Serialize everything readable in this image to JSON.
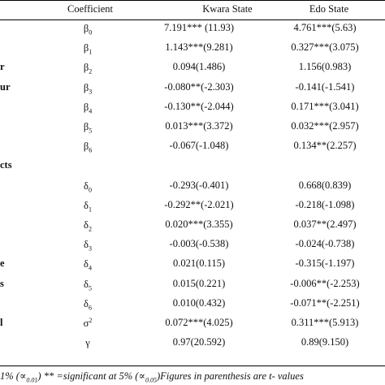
{
  "header": {
    "coefficient": "Coefficient",
    "kwara": "Kwara State",
    "edo": "Edo State"
  },
  "rows": [
    {
      "label": "",
      "sym_base": "β",
      "sym_sub": "0",
      "sym_sup": "",
      "kwara": "7.191*** (11.93)",
      "edo": "4.761***(5.63)"
    },
    {
      "label": "",
      "sym_base": "β",
      "sym_sub": "1",
      "sym_sup": "",
      "kwara": "1.143***(9.281)",
      "edo": "0.327***(3.075)"
    },
    {
      "label": "r",
      "sym_base": "β",
      "sym_sub": "2",
      "sym_sup": "",
      "kwara": "0.094(1.486)",
      "edo": "1.156(0.983)"
    },
    {
      "label": "ur",
      "sym_base": "β",
      "sym_sub": "3",
      "sym_sup": "",
      "kwara": "-0.080**(-2.303)",
      "edo": "-0.141(-1.541)"
    },
    {
      "label": "",
      "sym_base": "β",
      "sym_sub": "4",
      "sym_sup": "",
      "kwara": "-0.130**(-2.044)",
      "edo": "0.171***(3.041)"
    },
    {
      "label": "",
      "sym_base": "β",
      "sym_sub": "5",
      "sym_sup": "",
      "kwara": "0.013***(3.372)",
      "edo": "0.032***(2.957)"
    },
    {
      "label": "",
      "sym_base": "β",
      "sym_sub": "6",
      "sym_sup": "",
      "kwara": "-0.067(-1.048)",
      "edo": "0.134**(2.257)"
    },
    {
      "label": "cts",
      "sym_base": "",
      "sym_sub": "",
      "sym_sup": "",
      "kwara": "",
      "edo": ""
    },
    {
      "label": "",
      "sym_base": "δ",
      "sym_sub": "0",
      "sym_sup": "",
      "kwara": "-0.293(-0.401)",
      "edo": "0.668(0.839)"
    },
    {
      "label": "",
      "sym_base": "δ",
      "sym_sub": "1",
      "sym_sup": "",
      "kwara": "-0.292**(-2.021)",
      "edo": "-0.218(-1.098)"
    },
    {
      "label": "",
      "sym_base": "δ",
      "sym_sub": "2",
      "sym_sup": "",
      "kwara": "0.020***(3.355)",
      "edo": "0.037**(2.497)"
    },
    {
      "label": "",
      "sym_base": "δ",
      "sym_sub": "3",
      "sym_sup": "",
      "kwara": "-0.003(-0.538)",
      "edo": "-0.024(-0.738)"
    },
    {
      "label": "e",
      "sym_base": "δ",
      "sym_sub": "4",
      "sym_sup": "",
      "kwara": "0.021(0.115)",
      "edo": "-0.315(-1.197)"
    },
    {
      "label": "s",
      "sym_base": "δ",
      "sym_sub": "5",
      "sym_sup": "",
      "kwara": "0.015(0.221)",
      "edo": "-0.006**(-2.253)"
    },
    {
      "label": "",
      "sym_base": "δ",
      "sym_sub": "6",
      "sym_sup": "",
      "kwara": "0.010(0.432)",
      "edo": "-0.071**(-2.251)"
    },
    {
      "label": "l",
      "sym_base": "σ",
      "sym_sub": "",
      "sym_sup": "2",
      "kwara": "0.072***(4.025)",
      "edo": "0.311***(5.913)"
    },
    {
      "label": "",
      "sym_base": "γ",
      "sym_sub": "",
      "sym_sup": "",
      "kwara": "0.97(20.592)",
      "edo": "0.89(9.150)"
    }
  ],
  "footnote": {
    "part1": "1% (∝",
    "sub1": "0.01",
    "part2": ") ** =significant at 5% (∝",
    "sub2": "0.05",
    "part3": ")Figures in parenthesis are t- values"
  }
}
